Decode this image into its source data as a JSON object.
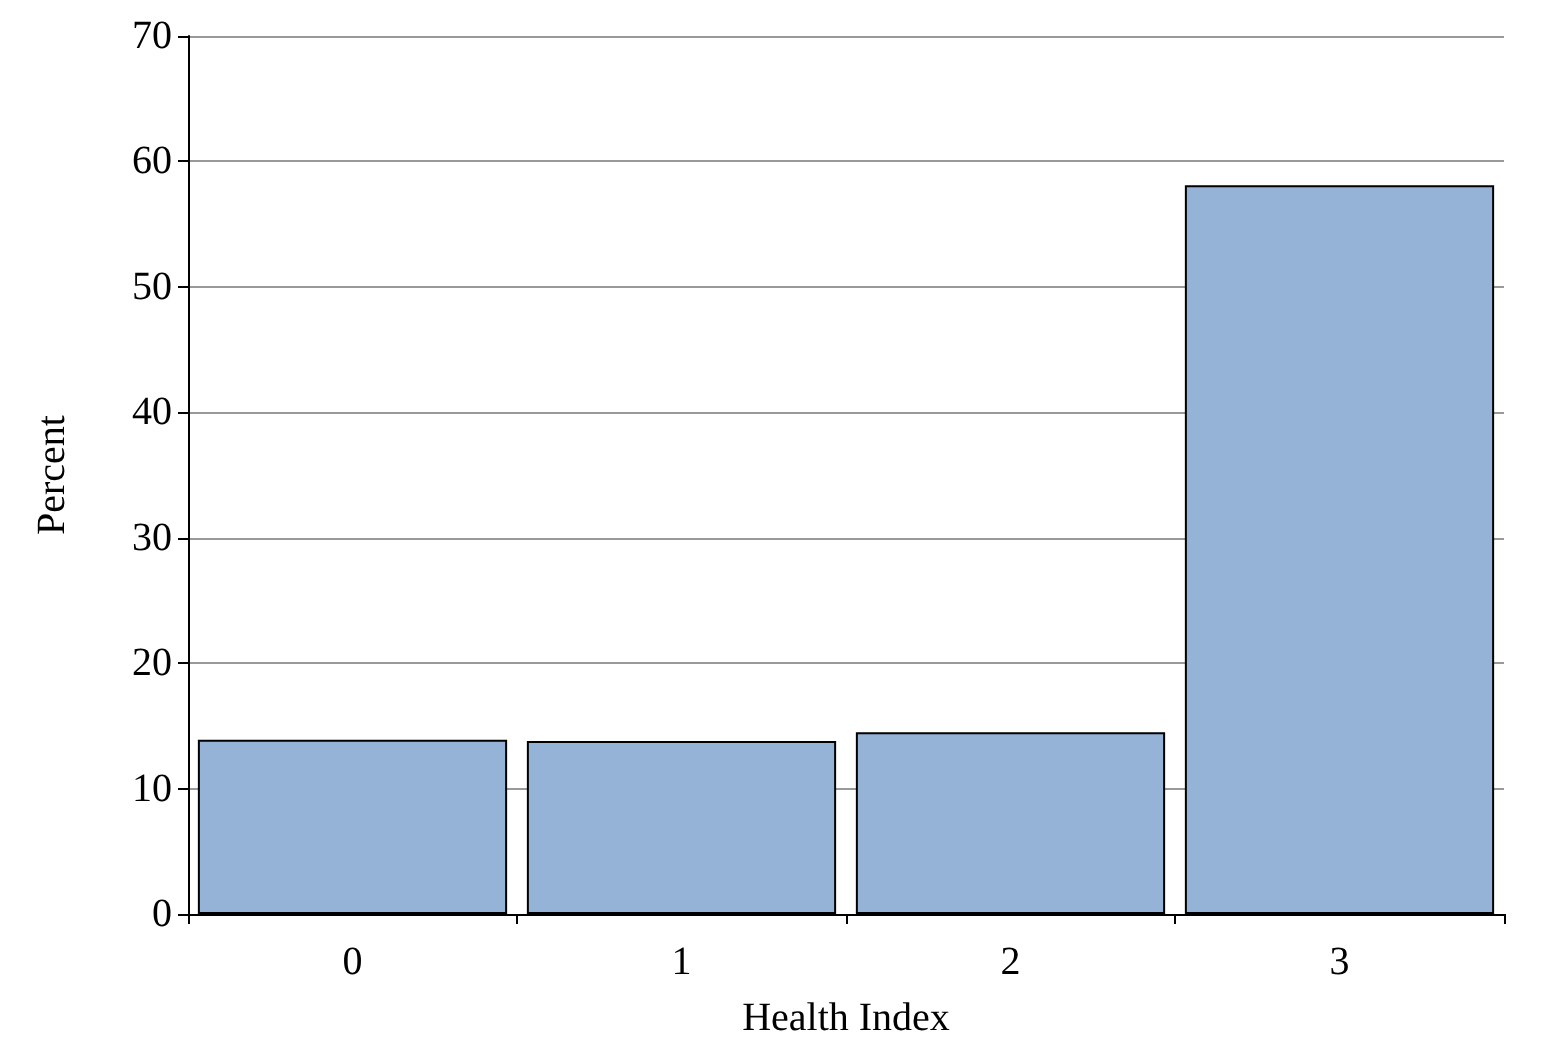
{
  "chart_data": {
    "type": "bar",
    "xlabel": "Health Index",
    "ylabel": "Percent",
    "categories": [
      "0",
      "1",
      "2",
      "3"
    ],
    "values": [
      13.9,
      13.8,
      14.5,
      58.1
    ],
    "color": "#95b3d7",
    "ylim": [
      0,
      70
    ],
    "yticks": [
      0,
      10,
      20,
      30,
      40,
      50,
      60,
      70
    ],
    "grid": "y"
  }
}
